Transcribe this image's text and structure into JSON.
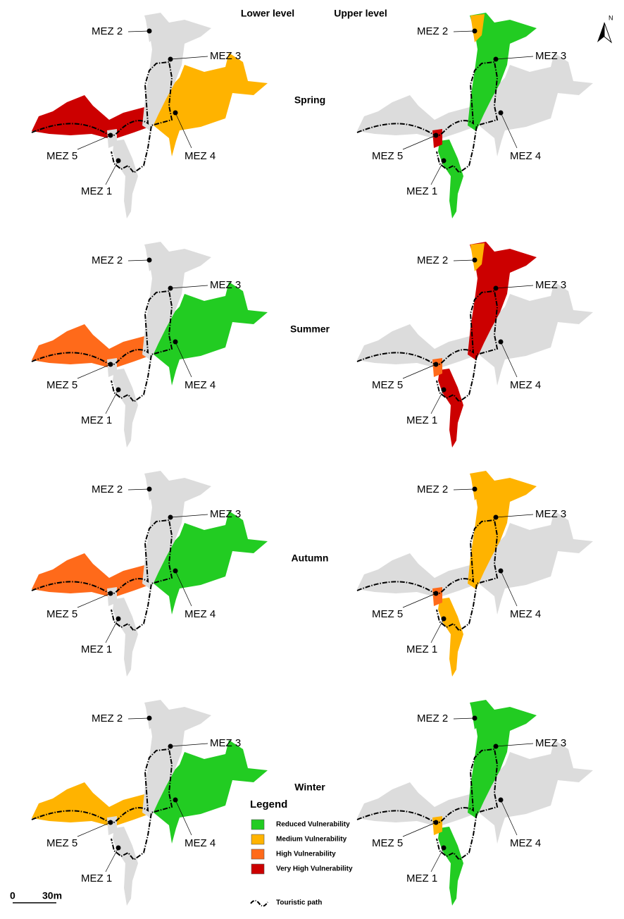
{
  "header": {
    "lower": "Lower level",
    "upper": "Upper level"
  },
  "north": "N",
  "stations": [
    "MEZ 1",
    "MEZ 2",
    "MEZ 3",
    "MEZ 4",
    "MEZ 5"
  ],
  "seasons": [
    {
      "name": "Spring",
      "lower": {
        "west": "#cc0000",
        "east": "#ffb300"
      },
      "upper": {
        "main": "#22cc22",
        "mez2": "#ffb300",
        "mez5": "#cc0000"
      }
    },
    {
      "name": "Summer",
      "lower": {
        "west": "#ff6a1a",
        "east": "#22cc22"
      },
      "upper": {
        "main": "#cc0000",
        "mez2": "#ffb300",
        "mez5": "#ff6a1a"
      }
    },
    {
      "name": "Autumn",
      "lower": {
        "west": "#ff6a1a",
        "east": "#22cc22"
      },
      "upper": {
        "main": "#ffb300",
        "mez2": "#ffb300",
        "mez5": "#ff6a1a"
      }
    },
    {
      "name": "Winter",
      "lower": {
        "west": "#ffb300",
        "east": "#22cc22"
      },
      "upper": {
        "main": "#22cc22",
        "mez2": "#22cc22",
        "mez5": "#ffb300"
      }
    }
  ],
  "legend": {
    "title": "Legend",
    "items": [
      {
        "label": "Reduced Vulnerability",
        "color": "#22cc22"
      },
      {
        "label": "Medium Vulnerability",
        "color": "#ffb300"
      },
      {
        "label": "High Vulnerability",
        "color": "#ff6a1a"
      },
      {
        "label": "Very High Vulnerability",
        "color": "#cc0000"
      }
    ],
    "path_label": "Touristic path"
  },
  "scale": {
    "start": "0",
    "end": "30m"
  }
}
